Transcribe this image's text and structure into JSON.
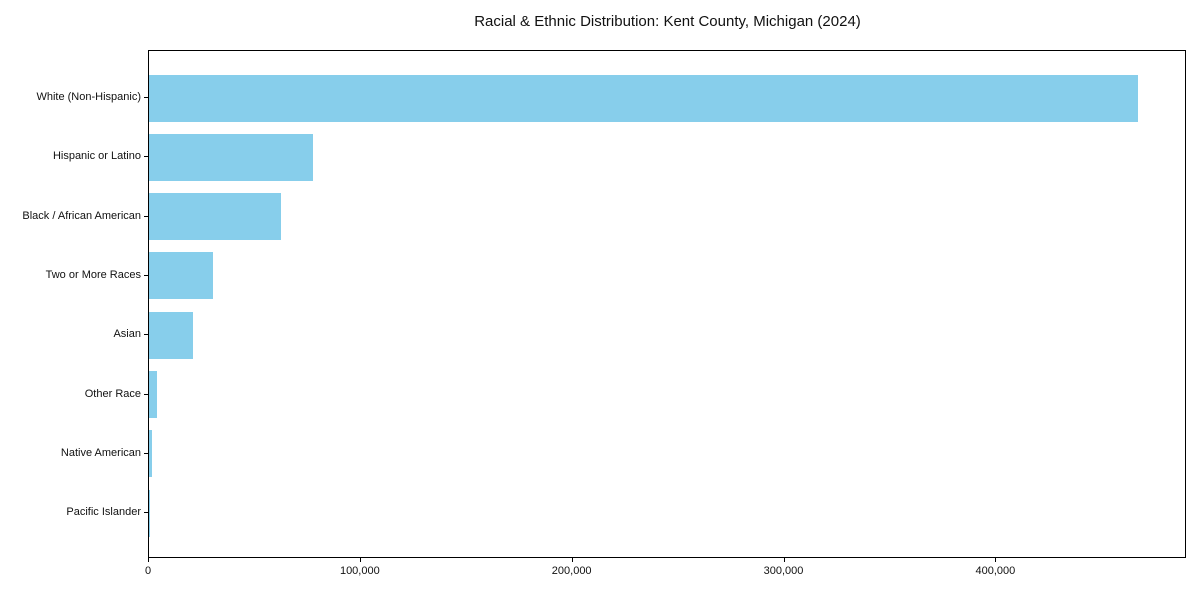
{
  "title": "Racial & Ethnic Distribution: Kent County, Michigan (2024)",
  "colors": {
    "bar": "#87CEEB",
    "axis": "#000000",
    "background": "#FFFFFF",
    "text": "#111111"
  },
  "chart_data": {
    "type": "bar",
    "orientation": "horizontal",
    "title": "Racial & Ethnic Distribution: Kent County, Michigan (2024)",
    "categories": [
      "White (Non-Hispanic)",
      "Hispanic or Latino",
      "Black / African American",
      "Two or More Races",
      "Asian",
      "Other Race",
      "Native American",
      "Pacific Islander"
    ],
    "values": [
      467000,
      77500,
      62500,
      30000,
      21000,
      4000,
      1500,
      400
    ],
    "xlabel": "",
    "ylabel": "",
    "xlim": [
      0,
      490000
    ],
    "xticks": [
      0,
      100000,
      200000,
      300000,
      400000
    ],
    "xtick_labels": [
      "0",
      "100,000",
      "200,000",
      "300,000",
      "400,000"
    ],
    "grid": false,
    "legend": "none",
    "bar_color": "#87CEEB"
  }
}
